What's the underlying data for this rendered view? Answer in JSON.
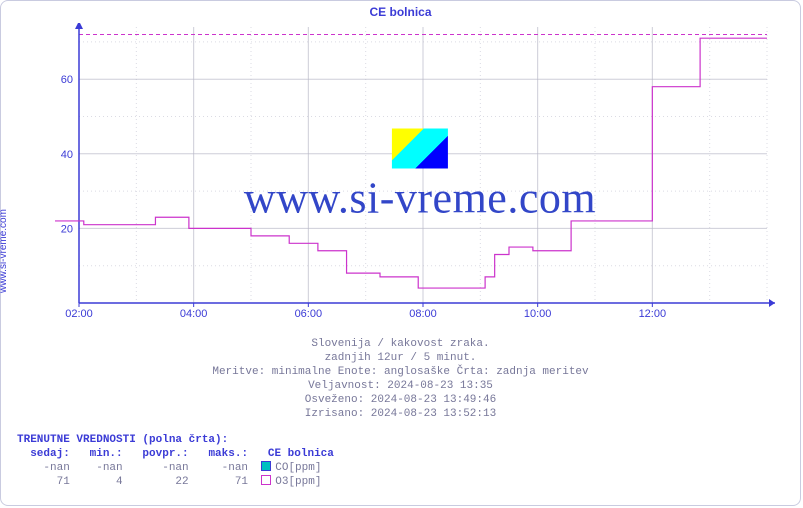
{
  "title": "CE bolnica",
  "ylabel_side": "www.si-vreme.com",
  "watermark_text": "www.si-vreme.com",
  "chart": {
    "type": "line",
    "background_color": "#ffffff",
    "plot_bg": "#ffffff",
    "grid_color": "#b8b8c8",
    "axis_color": "#3b3bd6",
    "ylim": [
      0,
      74
    ],
    "yticks": [
      20,
      40,
      60
    ],
    "xlim_minutes": [
      120,
      840
    ],
    "xticks_minutes": [
      120,
      240,
      360,
      480,
      600,
      720
    ],
    "xtick_labels": [
      "02:00",
      "04:00",
      "06:00",
      "08:00",
      "10:00",
      "12:00"
    ],
    "top_dashed_y": 72,
    "top_dashed_color": "#cc33cc",
    "series": {
      "name": "O3",
      "color": "#cc33cc",
      "width": 1.2,
      "points": [
        [
          80,
          22
        ],
        [
          125,
          22
        ],
        [
          125,
          21
        ],
        [
          200,
          21
        ],
        [
          200,
          23
        ],
        [
          235,
          23
        ],
        [
          235,
          20
        ],
        [
          300,
          20
        ],
        [
          300,
          18
        ],
        [
          340,
          18
        ],
        [
          340,
          16
        ],
        [
          370,
          16
        ],
        [
          370,
          14
        ],
        [
          400,
          14
        ],
        [
          400,
          8
        ],
        [
          435,
          8
        ],
        [
          435,
          7
        ],
        [
          475,
          7
        ],
        [
          475,
          4
        ],
        [
          545,
          4
        ],
        [
          545,
          7
        ],
        [
          555,
          7
        ],
        [
          555,
          13
        ],
        [
          570,
          13
        ],
        [
          570,
          15
        ],
        [
          595,
          15
        ],
        [
          595,
          14
        ],
        [
          635,
          14
        ],
        [
          635,
          22
        ],
        [
          720,
          22
        ],
        [
          720,
          58
        ],
        [
          770,
          58
        ],
        [
          770,
          71
        ],
        [
          840,
          71
        ]
      ]
    }
  },
  "footer": {
    "line1": "Slovenija / kakovost zraka.",
    "line2": "zadnjih 12ur / 5 minut.",
    "line3": "Meritve: minimalne  Enote: anglosaške  Črta: zadnja meritev",
    "line4": "Veljavnost: 2024-08-23 13:35",
    "line5": "Osveženo: 2024-08-23 13:49:46",
    "line6": "Izrisano: 2024-08-23 13:52:13"
  },
  "legend": {
    "header": "TRENUTNE VREDNOSTI (polna črta):",
    "cols": [
      "sedaj:",
      "min.:",
      "povpr.:",
      "maks.:"
    ],
    "station": "CE bolnica",
    "rows": [
      {
        "now": "-nan",
        "min": "-nan",
        "avg": "-nan",
        "max": "-nan",
        "swatch_fill": "#00c0c0",
        "swatch_border": "#3b3bd6",
        "label": "CO[ppm]"
      },
      {
        "now": "71",
        "min": "4",
        "avg": "22",
        "max": "71",
        "swatch_fill": "#ffffff",
        "swatch_border": "#cc33cc",
        "label": "O3[ppm]"
      }
    ]
  },
  "colors": {
    "frame": "#c9cbe0",
    "text_blue": "#3b3bd6",
    "text_gray": "#777799"
  }
}
